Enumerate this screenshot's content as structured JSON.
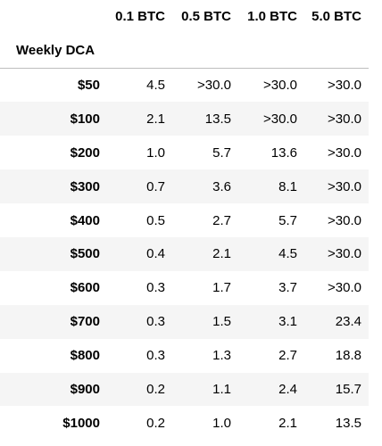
{
  "table": {
    "columns": [
      "0.1 BTC",
      "0.5 BTC",
      "1.0 BTC",
      "5.0 BTC"
    ],
    "index_name": "Weekly DCA",
    "rows": [
      {
        "label": "$50",
        "values": [
          "4.5",
          ">30.0",
          ">30.0",
          ">30.0"
        ]
      },
      {
        "label": "$100",
        "values": [
          "2.1",
          "13.5",
          ">30.0",
          ">30.0"
        ]
      },
      {
        "label": "$200",
        "values": [
          "1.0",
          "5.7",
          "13.6",
          ">30.0"
        ]
      },
      {
        "label": "$300",
        "values": [
          "0.7",
          "3.6",
          "8.1",
          ">30.0"
        ]
      },
      {
        "label": "$400",
        "values": [
          "0.5",
          "2.7",
          "5.7",
          ">30.0"
        ]
      },
      {
        "label": "$500",
        "values": [
          "0.4",
          "2.1",
          "4.5",
          ">30.0"
        ]
      },
      {
        "label": "$600",
        "values": [
          "0.3",
          "1.7",
          "3.7",
          ">30.0"
        ]
      },
      {
        "label": "$700",
        "values": [
          "0.3",
          "1.5",
          "3.1",
          "23.4"
        ]
      },
      {
        "label": "$800",
        "values": [
          "0.3",
          "1.3",
          "2.7",
          "18.8"
        ]
      },
      {
        "label": "$900",
        "values": [
          "0.2",
          "1.1",
          "2.4",
          "15.7"
        ]
      },
      {
        "label": "$1000",
        "values": [
          "0.2",
          "1.0",
          "2.1",
          "13.5"
        ]
      }
    ]
  },
  "colors": {
    "stripe": "#f5f5f5",
    "header_rule": "#bdbdbd",
    "text": "#000000"
  }
}
